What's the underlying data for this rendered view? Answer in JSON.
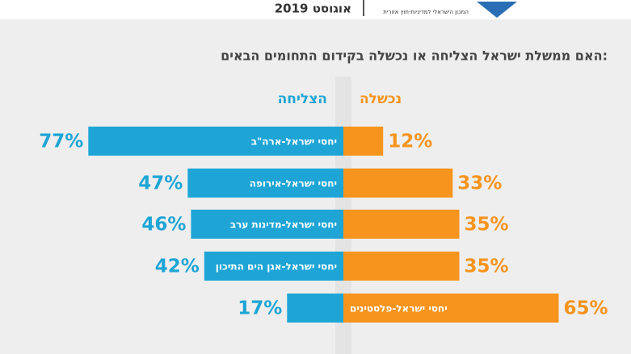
{
  "chart_data": {
    "type": "bar",
    "title": "האם ממשלת ישראל הצליחה או נכשלה בקידום התחומים הבאים:",
    "subtitle": "אוגוסט 2019",
    "annotations": [
      "המכון הישראלי למדיניות-חוץ אזורית"
    ],
    "categories": [
      "יחסי ישראל-ארה\"ב",
      "יחסי ישראל-אירופה",
      "יחסי ישראל-מדינות ערב",
      "יחסי ישראל-אגן הים התיכון",
      "יחסי ישראל-פלסטינים"
    ],
    "series": [
      {
        "name": "הצליחה",
        "color": "#1ea5d6",
        "values": [
          77,
          47,
          46,
          42,
          17
        ],
        "value_labels": [
          "77%",
          "47%",
          "46%",
          "42%",
          "17%"
        ]
      },
      {
        "name": "נכשלה",
        "color": "#f7941d",
        "values": [
          12,
          33,
          35,
          35,
          65
        ],
        "value_labels": [
          "12%",
          "33%",
          "35%",
          "35%",
          "65%"
        ]
      }
    ]
  }
}
